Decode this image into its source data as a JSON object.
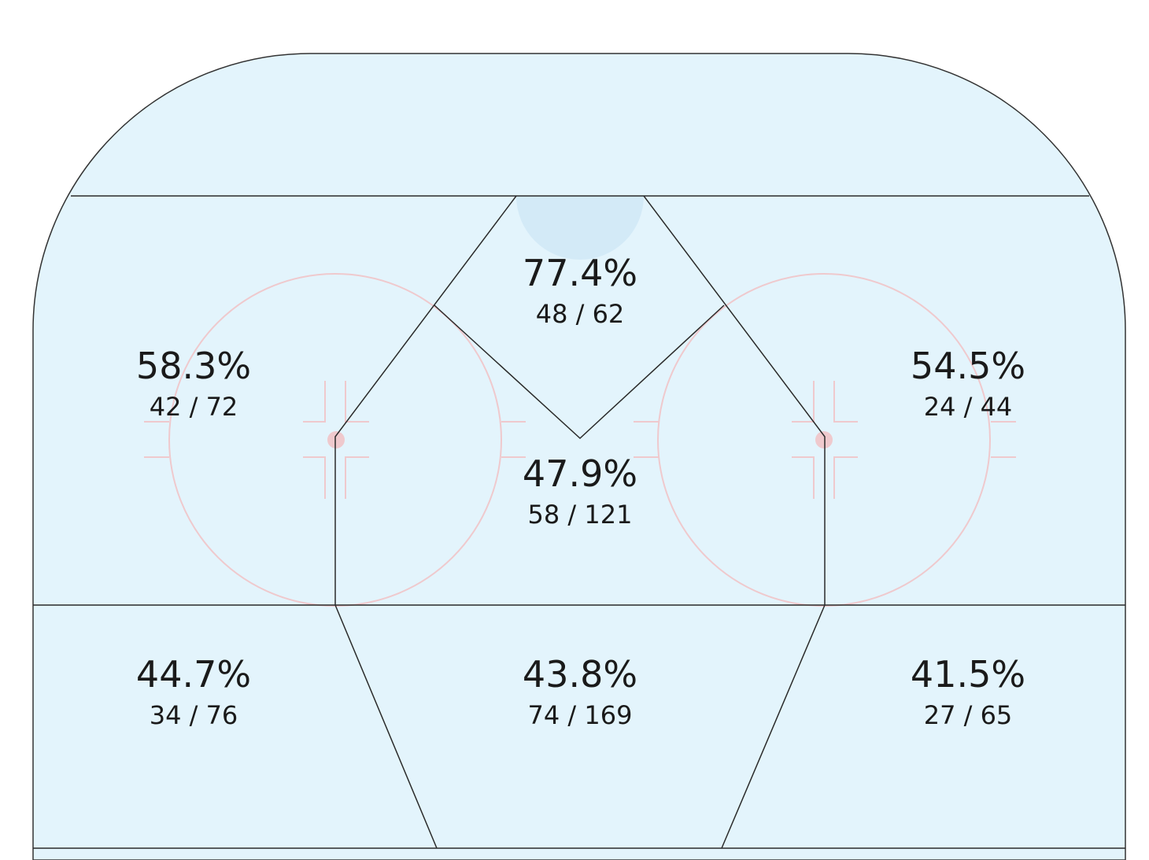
{
  "colors": {
    "ice": "#e3f4fc",
    "board": "#333333",
    "red_markings": "#efc9cd",
    "crease": "#d3eaf7",
    "zone_lines": "#2a2a2a"
  },
  "zones": {
    "slot_high": {
      "pct": "77.4%",
      "frac": "48 / 62"
    },
    "left_circle": {
      "pct": "58.3%",
      "frac": "42 / 72"
    },
    "right_circle": {
      "pct": "54.5%",
      "frac": "24 / 44"
    },
    "slot_low": {
      "pct": "47.9%",
      "frac": "58 / 121"
    },
    "left_point": {
      "pct": "44.7%",
      "frac": "34 / 76"
    },
    "center_point": {
      "pct": "43.8%",
      "frac": "74 / 169"
    },
    "right_point": {
      "pct": "41.5%",
      "frac": "27 / 65"
    }
  }
}
